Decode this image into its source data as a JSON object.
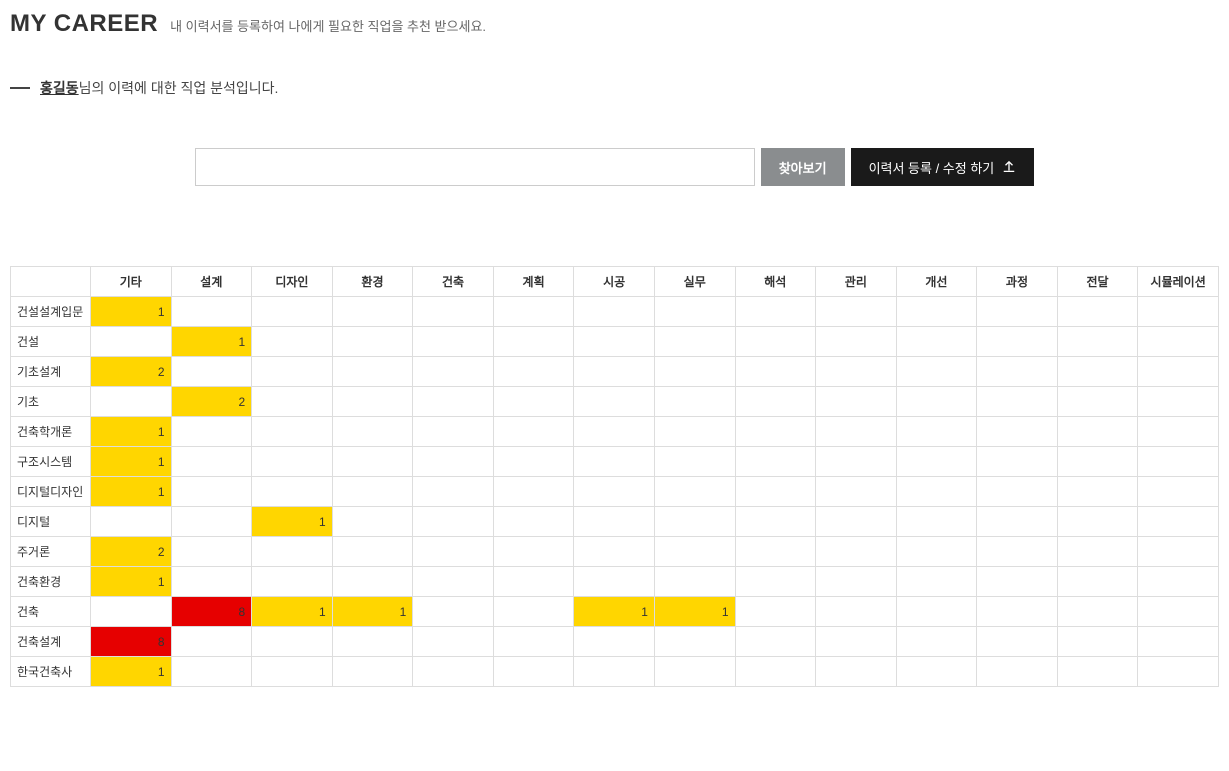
{
  "header": {
    "title": "MY CAREER",
    "subtitle": "내 이력서를 등록하여 나에게 필요한 직업을 추천 받으세요."
  },
  "analysis": {
    "user_name": "홍길동",
    "suffix_text": "님의 이력에 대한 직업 분석입니다."
  },
  "upload": {
    "browse_label": "찾아보기",
    "register_label": "이력서 등록 / 수정 하기"
  },
  "table": {
    "columns": [
      "기타",
      "설계",
      "디자인",
      "환경",
      "건축",
      "계획",
      "시공",
      "실무",
      "해석",
      "관리",
      "개선",
      "과정",
      "전달",
      "시뮬레이션"
    ],
    "rows": [
      {
        "label": "건설설계입문",
        "cells": [
          {
            "v": 1,
            "c": "yellow"
          },
          null,
          null,
          null,
          null,
          null,
          null,
          null,
          null,
          null,
          null,
          null,
          null,
          null
        ]
      },
      {
        "label": "건설",
        "cells": [
          null,
          {
            "v": 1,
            "c": "yellow"
          },
          null,
          null,
          null,
          null,
          null,
          null,
          null,
          null,
          null,
          null,
          null,
          null
        ]
      },
      {
        "label": "기초설계",
        "cells": [
          {
            "v": 2,
            "c": "yellow"
          },
          null,
          null,
          null,
          null,
          null,
          null,
          null,
          null,
          null,
          null,
          null,
          null,
          null
        ]
      },
      {
        "label": "기초",
        "cells": [
          null,
          {
            "v": 2,
            "c": "yellow"
          },
          null,
          null,
          null,
          null,
          null,
          null,
          null,
          null,
          null,
          null,
          null,
          null
        ]
      },
      {
        "label": "건축학개론",
        "cells": [
          {
            "v": 1,
            "c": "yellow"
          },
          null,
          null,
          null,
          null,
          null,
          null,
          null,
          null,
          null,
          null,
          null,
          null,
          null
        ]
      },
      {
        "label": "구조시스템",
        "cells": [
          {
            "v": 1,
            "c": "yellow"
          },
          null,
          null,
          null,
          null,
          null,
          null,
          null,
          null,
          null,
          null,
          null,
          null,
          null
        ]
      },
      {
        "label": "디지털디자인",
        "cells": [
          {
            "v": 1,
            "c": "yellow"
          },
          null,
          null,
          null,
          null,
          null,
          null,
          null,
          null,
          null,
          null,
          null,
          null,
          null
        ]
      },
      {
        "label": "디지털",
        "cells": [
          null,
          null,
          {
            "v": 1,
            "c": "yellow"
          },
          null,
          null,
          null,
          null,
          null,
          null,
          null,
          null,
          null,
          null,
          null
        ]
      },
      {
        "label": "주거론",
        "cells": [
          {
            "v": 2,
            "c": "yellow"
          },
          null,
          null,
          null,
          null,
          null,
          null,
          null,
          null,
          null,
          null,
          null,
          null,
          null
        ]
      },
      {
        "label": "건축환경",
        "cells": [
          {
            "v": 1,
            "c": "yellow"
          },
          null,
          null,
          null,
          null,
          null,
          null,
          null,
          null,
          null,
          null,
          null,
          null,
          null
        ]
      },
      {
        "label": "건축",
        "cells": [
          null,
          {
            "v": 8,
            "c": "red"
          },
          {
            "v": 1,
            "c": "yellow"
          },
          {
            "v": 1,
            "c": "yellow"
          },
          null,
          null,
          {
            "v": 1,
            "c": "yellow"
          },
          {
            "v": 1,
            "c": "yellow"
          },
          null,
          null,
          null,
          null,
          null,
          null
        ]
      },
      {
        "label": "건축설계",
        "cells": [
          {
            "v": 8,
            "c": "red"
          },
          null,
          null,
          null,
          null,
          null,
          null,
          null,
          null,
          null,
          null,
          null,
          null,
          null
        ]
      },
      {
        "label": "한국건축사",
        "cells": [
          {
            "v": 1,
            "c": "yellow"
          },
          null,
          null,
          null,
          null,
          null,
          null,
          null,
          null,
          null,
          null,
          null,
          null,
          null
        ]
      }
    ],
    "colors": {
      "yellow": "#ffd600",
      "red": "#e60000"
    }
  }
}
